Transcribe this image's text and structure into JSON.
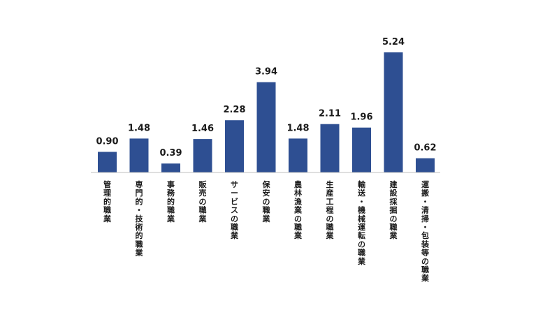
{
  "chart_data": {
    "type": "bar",
    "categories": [
      "管理的職業",
      "専門的・技術的職業",
      "事務的職業",
      "販売の職業",
      "サービスの職業",
      "保安の職業",
      "農林漁業の職業",
      "生産工程の職業",
      "輸送・機械運転の職業",
      "建設採掘の職業",
      "運搬・清掃・包装等の職業"
    ],
    "values": [
      0.9,
      1.48,
      0.39,
      1.46,
      2.28,
      3.94,
      1.48,
      2.11,
      1.96,
      5.24,
      0.62
    ],
    "value_labels": [
      "0.90",
      "1.48",
      "0.39",
      "1.46",
      "2.28",
      "3.94",
      "1.48",
      "2.11",
      "1.96",
      "5.24",
      "0.62"
    ],
    "ylim": [
      0,
      5.24
    ],
    "grid": false,
    "legend": "none",
    "bar_color": "#2e4f92",
    "category_label_orientation": "vertical"
  }
}
